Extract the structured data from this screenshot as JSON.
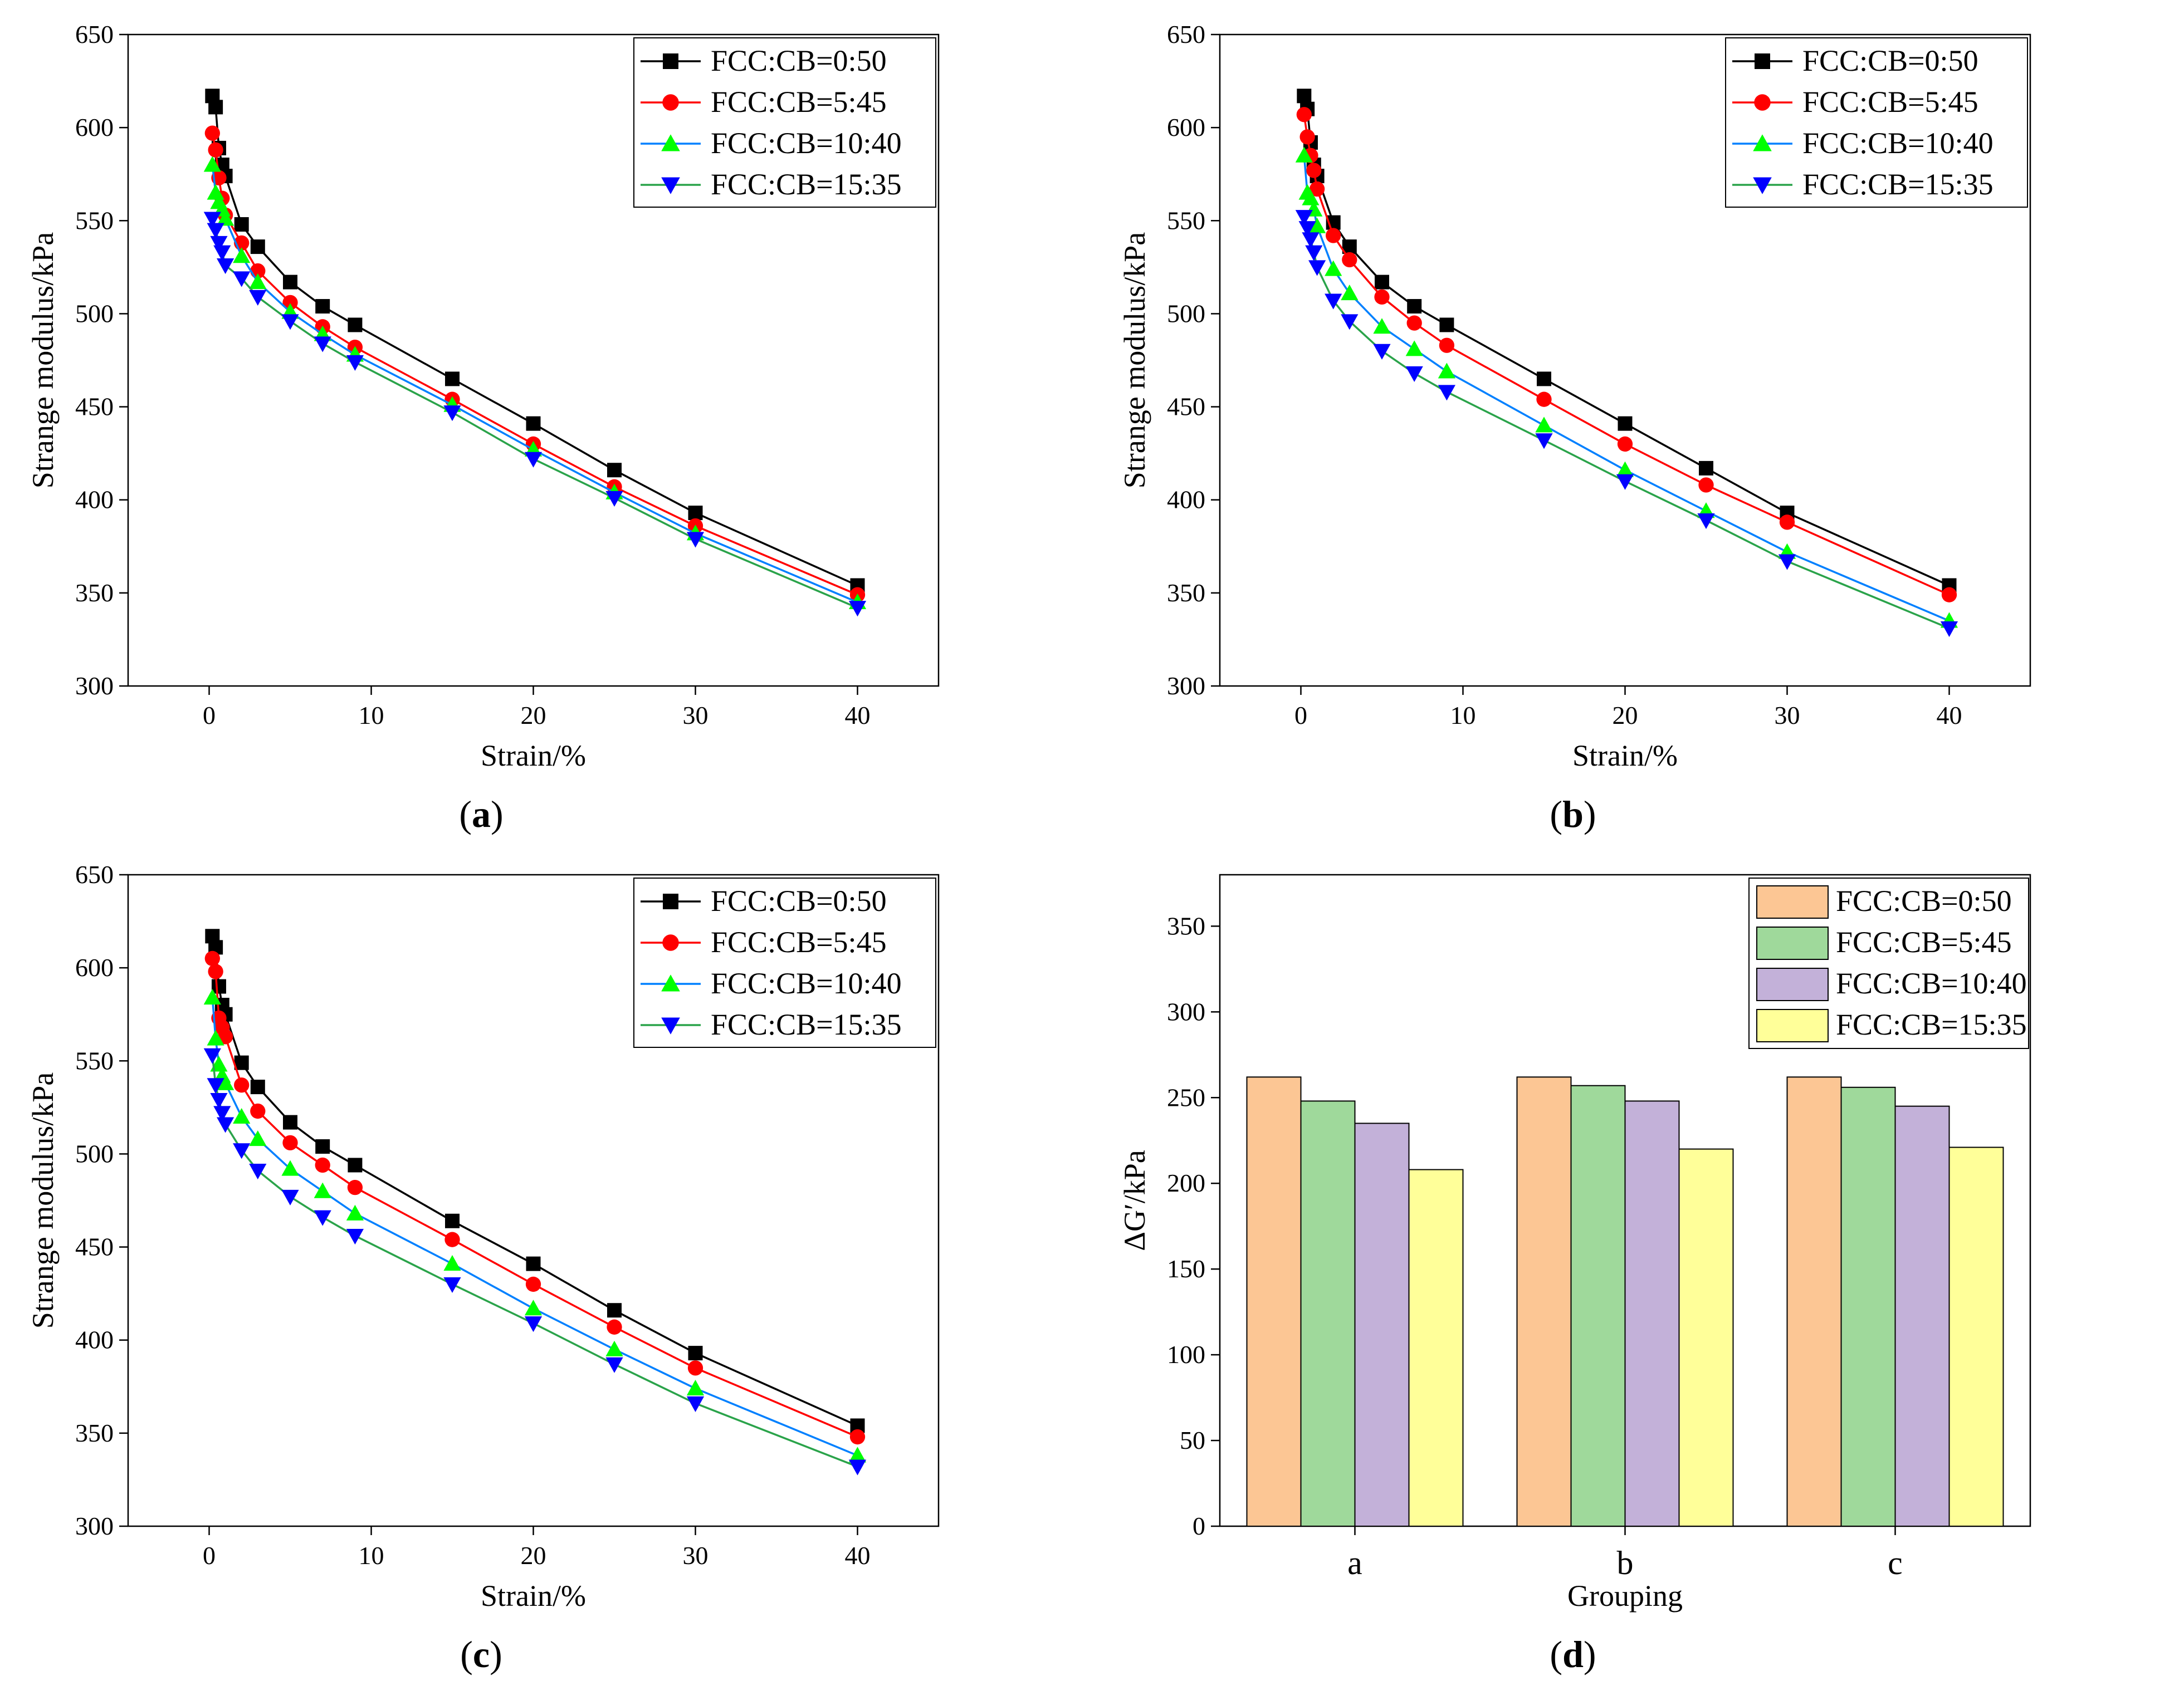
{
  "colors": {
    "line_series": [
      "#000000",
      "#ff0000",
      "#0080ff",
      "#2aa34a"
    ],
    "line_markers": [
      "#000000",
      "#ff0000",
      "#00ff00",
      "#0000ff"
    ],
    "bar_series": [
      "#fcc694",
      "#9fd99b",
      "#c3b1d9",
      "#ffff99"
    ]
  },
  "chart_data": [
    {
      "type": "line",
      "caption_letter": "a",
      "xlabel": "Strain/%",
      "ylabel": "Strange modulus/kPa",
      "xlim": [
        -5,
        45
      ],
      "ylim": [
        300,
        650
      ],
      "xticks": [
        0,
        10,
        20,
        30,
        40
      ],
      "yticks": [
        300,
        350,
        400,
        450,
        500,
        550,
        600,
        650
      ],
      "x": [
        0.2,
        0.4,
        0.6,
        0.8,
        1,
        2,
        3,
        5,
        7,
        9,
        15,
        20,
        25,
        30,
        40
      ],
      "series": [
        {
          "name": "FCC:CB=0:50",
          "marker": "square",
          "values": [
            617,
            611,
            589,
            580,
            574,
            548,
            536,
            517,
            504,
            494,
            465,
            441,
            416,
            393,
            354
          ]
        },
        {
          "name": "FCC:CB=5:45",
          "marker": "circle",
          "values": [
            597,
            588,
            573,
            562,
            553,
            538,
            523,
            506,
            493,
            482,
            454,
            430,
            407,
            386,
            349
          ]
        },
        {
          "name": "FCC:CB=10:40",
          "marker": "triangle-up",
          "values": [
            580,
            565,
            560,
            556,
            551,
            531,
            517,
            501,
            489,
            478,
            451,
            427,
            404,
            382,
            345
          ]
        },
        {
          "name": "FCC:CB=15:35",
          "marker": "triangle-down",
          "values": [
            551,
            545,
            538,
            533,
            526,
            519,
            509,
            496,
            484,
            474,
            447,
            422,
            401,
            379,
            342
          ]
        }
      ],
      "legend": "top-right"
    },
    {
      "type": "line",
      "caption_letter": "b",
      "xlabel": "Strain/%",
      "ylabel": "Strange modulus/kPa",
      "xlim": [
        -5,
        45
      ],
      "ylim": [
        300,
        650
      ],
      "xticks": [
        0,
        10,
        20,
        30,
        40
      ],
      "yticks": [
        300,
        350,
        400,
        450,
        500,
        550,
        600,
        650
      ],
      "x": [
        0.2,
        0.4,
        0.6,
        0.8,
        1,
        2,
        3,
        5,
        7,
        9,
        15,
        20,
        25,
        30,
        40
      ],
      "series": [
        {
          "name": "FCC:CB=0:50",
          "marker": "square",
          "values": [
            617,
            610,
            592,
            580,
            574,
            549,
            536,
            517,
            504,
            494,
            465,
            441,
            417,
            393,
            354
          ]
        },
        {
          "name": "FCC:CB=5:45",
          "marker": "circle",
          "values": [
            607,
            595,
            585,
            577,
            567,
            542,
            529,
            509,
            495,
            483,
            454,
            430,
            408,
            388,
            349
          ]
        },
        {
          "name": "FCC:CB=10:40",
          "marker": "triangle-up",
          "values": [
            585,
            565,
            562,
            556,
            547,
            524,
            511,
            493,
            481,
            469,
            440,
            416,
            394,
            372,
            335
          ]
        },
        {
          "name": "FCC:CB=15:35",
          "marker": "triangle-down",
          "values": [
            552,
            546,
            540,
            533,
            525,
            507,
            496,
            480,
            468,
            458,
            432,
            410,
            389,
            367,
            331
          ]
        }
      ],
      "legend": "top-right"
    },
    {
      "type": "line",
      "caption_letter": "c",
      "xlabel": "Strain/%",
      "ylabel": "Strange modulus/kPa",
      "xlim": [
        -5,
        45
      ],
      "ylim": [
        300,
        650
      ],
      "xticks": [
        0,
        10,
        20,
        30,
        40
      ],
      "yticks": [
        300,
        350,
        400,
        450,
        500,
        550,
        600,
        650
      ],
      "x": [
        0.2,
        0.4,
        0.6,
        0.8,
        1,
        2,
        3,
        5,
        7,
        9,
        15,
        20,
        25,
        30,
        40
      ],
      "series": [
        {
          "name": "FCC:CB=0:50",
          "marker": "square",
          "values": [
            617,
            611,
            590,
            580,
            575,
            549,
            536,
            517,
            504,
            494,
            464,
            441,
            416,
            393,
            354
          ]
        },
        {
          "name": "FCC:CB=5:45",
          "marker": "circle",
          "values": [
            605,
            598,
            573,
            568,
            563,
            537,
            523,
            506,
            494,
            482,
            454,
            430,
            407,
            385,
            348
          ]
        },
        {
          "name": "FCC:CB=10:40",
          "marker": "triangle-up",
          "values": [
            584,
            562,
            548,
            542,
            538,
            520,
            508,
            492,
            480,
            468,
            441,
            417,
            395,
            374,
            338
          ]
        },
        {
          "name": "FCC:CB=15:35",
          "marker": "triangle-down",
          "values": [
            553,
            537,
            529,
            522,
            516,
            502,
            491,
            477,
            466,
            456,
            430,
            409,
            387,
            366,
            332
          ]
        }
      ],
      "legend": "top-right"
    },
    {
      "type": "bar",
      "caption_letter": "d",
      "xlabel": "Grouping",
      "ylabel": "ΔG′/kPa",
      "ylim": [
        0,
        380
      ],
      "yticks": [
        0,
        50,
        100,
        150,
        200,
        250,
        300,
        350
      ],
      "categories": [
        "a",
        "b",
        "c"
      ],
      "series": [
        {
          "name": "FCC:CB=0:50",
          "values": [
            262,
            262,
            262
          ]
        },
        {
          "name": "FCC:CB=5:45",
          "values": [
            248,
            257,
            256
          ]
        },
        {
          "name": "FCC:CB=10:40",
          "values": [
            235,
            248,
            245
          ]
        },
        {
          "name": "FCC:CB=15:35",
          "values": [
            208,
            220,
            221
          ]
        }
      ],
      "legend": "top-right"
    }
  ]
}
